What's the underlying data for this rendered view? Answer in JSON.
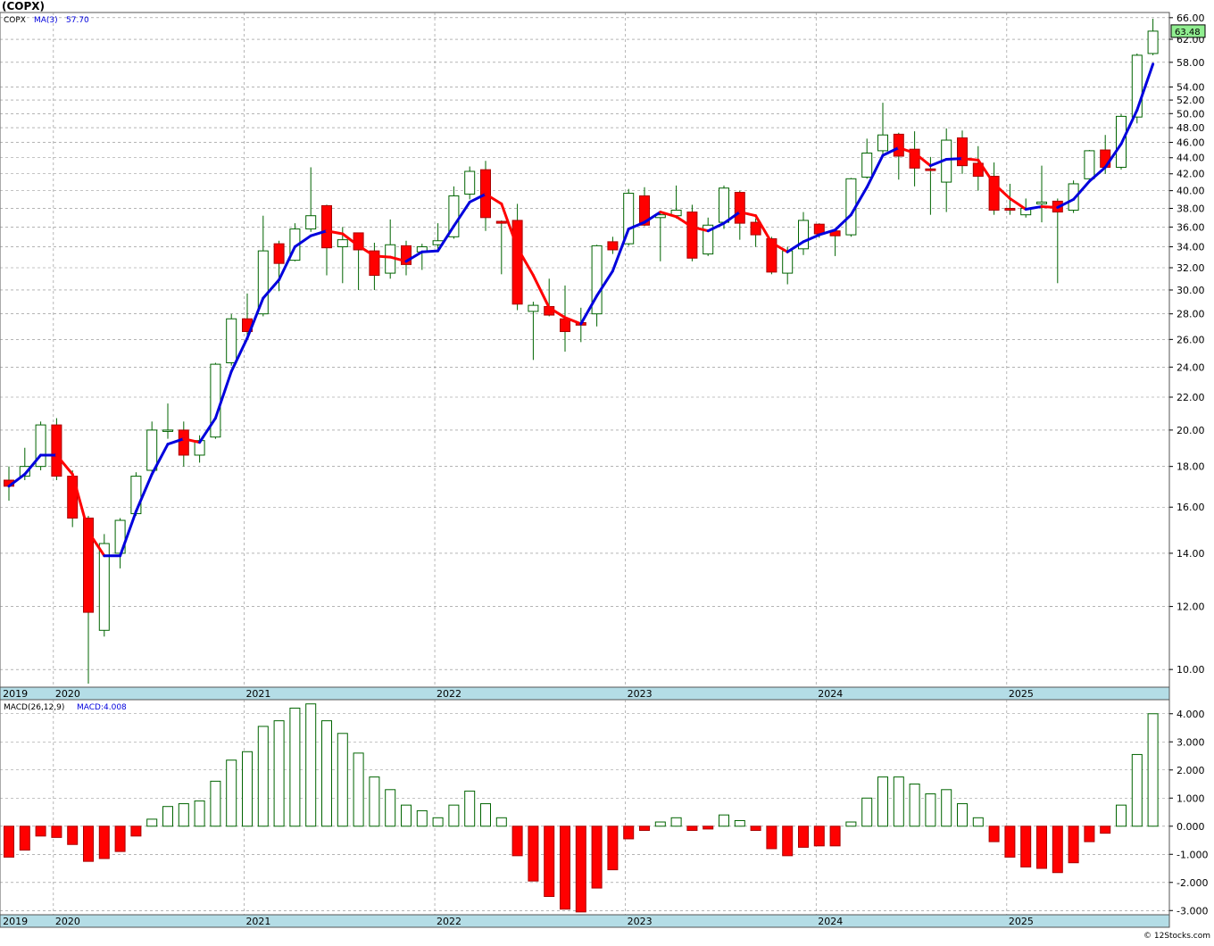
{
  "header": {
    "symbol_title": "(COPX)",
    "legend_symbol": "COPX",
    "legend_ma_label": "MA(3)",
    "legend_ma_value": "57.70",
    "macd_label": "MACD(26,12,9)",
    "macd_value_label": "MACD:4.008",
    "watermark": "© 12Stocks.com",
    "last_price_label": "63.48"
  },
  "colors": {
    "up_outline": "#006400",
    "down_fill": "#ff0000",
    "ma_up": "#0000dd",
    "ma_down": "#ff0000",
    "axis_band": "#b4dde6",
    "grid": "#888888",
    "last_price_box": "#90ee90"
  },
  "chart_data": [
    {
      "type": "candlestick",
      "interval": "monthly",
      "symbol": "COPX",
      "scale": "log",
      "ylim": [
        9.5,
        67
      ],
      "yticks": [
        "66.00",
        "62.00",
        "58.00",
        "54.00",
        "52.00",
        "50.00",
        "48.00",
        "46.00",
        "44.00",
        "42.00",
        "40.00",
        "38.00",
        "36.00",
        "34.00",
        "32.00",
        "30.00",
        "28.00",
        "26.00",
        "24.00",
        "22.00",
        "20.00",
        "18.00",
        "16.00",
        "14.00",
        "12.00",
        "10.00"
      ],
      "xticks": [
        {
          "label": "2019",
          "index": -0.5
        },
        {
          "label": "2020",
          "index": 2.8
        },
        {
          "label": "2021",
          "index": 14.8
        },
        {
          "label": "2022",
          "index": 26.8
        },
        {
          "label": "2023",
          "index": 38.8
        },
        {
          "label": "2024",
          "index": 50.8
        },
        {
          "label": "2025",
          "index": 62.8
        }
      ],
      "grid": true,
      "candles": [
        {
          "o": 17.3,
          "h": 18.0,
          "l": 16.3,
          "c": 17.0
        },
        {
          "o": 17.5,
          "h": 19.0,
          "l": 17.3,
          "c": 18.0
        },
        {
          "o": 18.0,
          "h": 20.5,
          "l": 17.8,
          "c": 20.3
        },
        {
          "o": 20.3,
          "h": 20.7,
          "l": 17.3,
          "c": 17.5
        },
        {
          "o": 17.5,
          "h": 17.8,
          "l": 15.1,
          "c": 15.5
        },
        {
          "o": 15.5,
          "h": 15.6,
          "l": 9.6,
          "c": 11.8
        },
        {
          "o": 11.2,
          "h": 14.8,
          "l": 11.0,
          "c": 14.4
        },
        {
          "o": 14.0,
          "h": 15.5,
          "l": 13.4,
          "c": 15.4
        },
        {
          "o": 15.7,
          "h": 17.7,
          "l": 15.6,
          "c": 17.5
        },
        {
          "o": 17.8,
          "h": 20.5,
          "l": 17.6,
          "c": 20.0
        },
        {
          "o": 20.0,
          "h": 21.6,
          "l": 19.5,
          "c": 20.0
        },
        {
          "o": 20.0,
          "h": 20.5,
          "l": 18.0,
          "c": 18.6
        },
        {
          "o": 18.6,
          "h": 19.7,
          "l": 18.2,
          "c": 19.4
        },
        {
          "o": 19.6,
          "h": 24.3,
          "l": 19.5,
          "c": 24.2
        },
        {
          "o": 24.3,
          "h": 28.0,
          "l": 24.1,
          "c": 27.6
        },
        {
          "o": 27.6,
          "h": 29.7,
          "l": 26.3,
          "c": 26.6
        },
        {
          "o": 28.0,
          "h": 37.2,
          "l": 27.8,
          "c": 33.6
        },
        {
          "o": 34.3,
          "h": 34.6,
          "l": 29.9,
          "c": 32.4
        },
        {
          "o": 32.7,
          "h": 36.4,
          "l": 32.6,
          "c": 35.8
        },
        {
          "o": 35.8,
          "h": 42.8,
          "l": 35.5,
          "c": 37.2
        },
        {
          "o": 38.3,
          "h": 38.4,
          "l": 31.3,
          "c": 33.9
        },
        {
          "o": 34.0,
          "h": 36.0,
          "l": 30.6,
          "c": 34.7
        },
        {
          "o": 35.4,
          "h": 35.4,
          "l": 30.0,
          "c": 33.7
        },
        {
          "o": 33.6,
          "h": 34.4,
          "l": 30.0,
          "c": 31.3
        },
        {
          "o": 31.5,
          "h": 36.8,
          "l": 31.0,
          "c": 34.2
        },
        {
          "o": 34.1,
          "h": 34.6,
          "l": 31.3,
          "c": 32.3
        },
        {
          "o": 33.5,
          "h": 34.3,
          "l": 31.8,
          "c": 34.0
        },
        {
          "o": 34.2,
          "h": 36.4,
          "l": 33.5,
          "c": 34.6
        },
        {
          "o": 35.0,
          "h": 40.5,
          "l": 34.8,
          "c": 39.4
        },
        {
          "o": 39.6,
          "h": 42.9,
          "l": 39.0,
          "c": 42.3
        },
        {
          "o": 42.5,
          "h": 43.6,
          "l": 35.6,
          "c": 37.0
        },
        {
          "o": 36.6,
          "h": 36.7,
          "l": 31.4,
          "c": 36.4
        },
        {
          "o": 36.7,
          "h": 38.5,
          "l": 28.3,
          "c": 28.8
        },
        {
          "o": 28.2,
          "h": 29.0,
          "l": 24.5,
          "c": 28.7
        },
        {
          "o": 28.6,
          "h": 31.0,
          "l": 27.8,
          "c": 27.9
        },
        {
          "o": 27.6,
          "h": 30.4,
          "l": 25.1,
          "c": 26.6
        },
        {
          "o": 27.3,
          "h": 28.5,
          "l": 25.8,
          "c": 27.1
        },
        {
          "o": 28.0,
          "h": 34.2,
          "l": 27.0,
          "c": 34.1
        },
        {
          "o": 34.5,
          "h": 35.0,
          "l": 33.3,
          "c": 33.7
        },
        {
          "o": 34.3,
          "h": 40.2,
          "l": 34.1,
          "c": 39.7
        },
        {
          "o": 39.4,
          "h": 40.4,
          "l": 36.1,
          "c": 36.2
        },
        {
          "o": 37.0,
          "h": 37.5,
          "l": 32.6,
          "c": 37.3
        },
        {
          "o": 37.2,
          "h": 40.6,
          "l": 36.9,
          "c": 37.8
        },
        {
          "o": 37.6,
          "h": 38.4,
          "l": 32.6,
          "c": 32.9
        },
        {
          "o": 33.3,
          "h": 37.0,
          "l": 33.1,
          "c": 36.2
        },
        {
          "o": 36.5,
          "h": 40.6,
          "l": 35.8,
          "c": 40.3
        },
        {
          "o": 39.8,
          "h": 40.0,
          "l": 34.7,
          "c": 36.4
        },
        {
          "o": 36.5,
          "h": 36.9,
          "l": 34.0,
          "c": 35.2
        },
        {
          "o": 34.8,
          "h": 35.0,
          "l": 31.4,
          "c": 31.6
        },
        {
          "o": 31.5,
          "h": 34.0,
          "l": 30.5,
          "c": 33.6
        },
        {
          "o": 33.8,
          "h": 37.6,
          "l": 33.2,
          "c": 36.7
        },
        {
          "o": 36.3,
          "h": 36.4,
          "l": 34.9,
          "c": 35.3
        },
        {
          "o": 35.6,
          "h": 35.8,
          "l": 33.1,
          "c": 35.1
        },
        {
          "o": 35.2,
          "h": 41.5,
          "l": 35.0,
          "c": 41.4
        },
        {
          "o": 41.6,
          "h": 46.5,
          "l": 41.4,
          "c": 44.6
        },
        {
          "o": 44.9,
          "h": 51.6,
          "l": 44.5,
          "c": 47.0
        },
        {
          "o": 47.1,
          "h": 47.3,
          "l": 41.3,
          "c": 44.2
        },
        {
          "o": 45.1,
          "h": 47.5,
          "l": 40.5,
          "c": 42.7
        },
        {
          "o": 42.6,
          "h": 44.1,
          "l": 37.3,
          "c": 42.4
        },
        {
          "o": 41.0,
          "h": 47.9,
          "l": 37.6,
          "c": 46.3
        },
        {
          "o": 46.6,
          "h": 47.6,
          "l": 42.0,
          "c": 43.0
        },
        {
          "o": 43.3,
          "h": 45.5,
          "l": 40.0,
          "c": 41.7
        },
        {
          "o": 41.7,
          "h": 43.4,
          "l": 37.3,
          "c": 37.8
        },
        {
          "o": 38.0,
          "h": 40.8,
          "l": 37.3,
          "c": 37.8
        },
        {
          "o": 37.3,
          "h": 39.1,
          "l": 37.0,
          "c": 38.0
        },
        {
          "o": 38.5,
          "h": 43.0,
          "l": 36.5,
          "c": 38.7
        },
        {
          "o": 38.8,
          "h": 39.1,
          "l": 30.6,
          "c": 37.6
        },
        {
          "o": 37.8,
          "h": 41.2,
          "l": 37.5,
          "c": 40.8
        },
        {
          "o": 41.4,
          "h": 45.0,
          "l": 41.3,
          "c": 44.9
        },
        {
          "o": 45.0,
          "h": 47.0,
          "l": 42.0,
          "c": 42.8
        },
        {
          "o": 42.8,
          "h": 49.9,
          "l": 42.5,
          "c": 49.6
        },
        {
          "o": 49.5,
          "h": 59.5,
          "l": 48.6,
          "c": 59.2
        },
        {
          "o": 59.5,
          "h": 65.8,
          "l": 59.2,
          "c": 63.48
        }
      ],
      "moving_average": {
        "name": "MA(3)",
        "last_value": 57.7,
        "values": [
          17.0,
          17.6,
          18.6,
          18.6,
          17.6,
          14.9,
          13.9,
          13.9,
          15.8,
          17.6,
          19.2,
          19.5,
          19.3,
          20.7,
          23.7,
          26.1,
          29.3,
          30.9,
          34.0,
          35.1,
          35.6,
          35.3,
          34.1,
          33.1,
          33.0,
          32.6,
          33.5,
          33.6,
          36.1,
          38.7,
          39.6,
          38.5,
          33.9,
          31.3,
          28.5,
          27.7,
          27.2,
          29.5,
          31.7,
          35.8,
          36.5,
          37.6,
          37.1,
          36.0,
          35.6,
          36.4,
          37.6,
          37.2,
          34.4,
          33.5,
          34.5,
          35.2,
          35.7,
          37.3,
          40.4,
          44.3,
          45.3,
          44.6,
          43.0,
          43.8,
          43.9,
          43.7,
          40.8,
          39.1,
          37.9,
          38.2,
          38.1,
          39.0,
          41.1,
          42.8,
          45.8,
          50.5,
          57.7
        ]
      },
      "last_price": 63.48
    },
    {
      "type": "bar",
      "name": "MACD(26,12,9)",
      "last_value": 4.008,
      "ylim": [
        -3.15,
        4.5
      ],
      "yticks": [
        "4.000",
        "3.000",
        "2.000",
        "1.000",
        "0.000",
        "-1.000",
        "-2.000",
        "-3.000"
      ],
      "xticks": [
        {
          "label": "2019",
          "index": -0.5
        },
        {
          "label": "2020",
          "index": 2.8
        },
        {
          "label": "2021",
          "index": 14.8
        },
        {
          "label": "2022",
          "index": 26.8
        },
        {
          "label": "2023",
          "index": 38.8
        },
        {
          "label": "2024",
          "index": 50.8
        },
        {
          "label": "2025",
          "index": 62.8
        }
      ],
      "values": [
        -1.1,
        -0.85,
        -0.35,
        -0.4,
        -0.65,
        -1.25,
        -1.15,
        -0.9,
        -0.35,
        0.25,
        0.7,
        0.8,
        0.9,
        1.6,
        2.35,
        2.65,
        3.55,
        3.75,
        4.2,
        4.35,
        3.75,
        3.3,
        2.6,
        1.75,
        1.3,
        0.75,
        0.55,
        0.3,
        0.75,
        1.25,
        0.8,
        0.3,
        -1.05,
        -1.95,
        -2.5,
        -2.95,
        -3.05,
        -2.2,
        -1.55,
        -0.45,
        -0.15,
        0.15,
        0.3,
        -0.15,
        -0.1,
        0.4,
        0.2,
        -0.15,
        -0.8,
        -1.05,
        -0.75,
        -0.7,
        -0.7,
        0.15,
        1.0,
        1.75,
        1.75,
        1.5,
        1.15,
        1.3,
        0.8,
        0.3,
        -0.55,
        -1.1,
        -1.45,
        -1.5,
        -1.65,
        -1.3,
        -0.55,
        -0.25,
        0.75,
        2.55,
        4.0
      ]
    }
  ]
}
